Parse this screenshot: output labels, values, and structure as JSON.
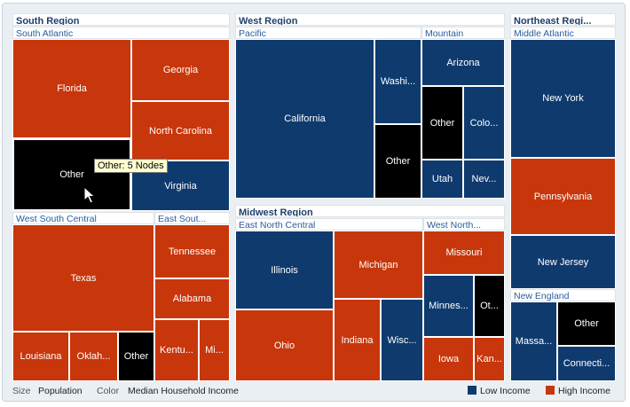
{
  "colors": {
    "low": "#0f3a6e",
    "high": "#c8360b",
    "other": "#000000"
  },
  "chart_data": {
    "type": "treemap",
    "size_measure": "Population",
    "color_measure": "Median Household Income",
    "legend": [
      {
        "key": "low",
        "label": "Low Income"
      },
      {
        "key": "high",
        "label": "High Income"
      }
    ],
    "tooltip": "Other: 5 Nodes",
    "regions": [
      {
        "name": "South Region",
        "subregions": [
          {
            "name": "South Atlantic",
            "states": [
              {
                "name": "Florida",
                "income": "high"
              },
              {
                "name": "Georgia",
                "income": "high"
              },
              {
                "name": "North Carolina",
                "income": "high"
              },
              {
                "name": "Other",
                "income": "other",
                "nodes": 5
              },
              {
                "name": "Virginia",
                "income": "low"
              }
            ]
          },
          {
            "name": "West South Central",
            "states": [
              {
                "name": "Texas",
                "income": "high"
              },
              {
                "name": "Louisiana",
                "income": "high"
              },
              {
                "name": "Oklah...",
                "income": "high"
              },
              {
                "name": "Other",
                "income": "other"
              }
            ]
          },
          {
            "name": "East Sout...",
            "states": [
              {
                "name": "Tennessee",
                "income": "high"
              },
              {
                "name": "Alabama",
                "income": "high"
              },
              {
                "name": "Kentu...",
                "income": "high"
              },
              {
                "name": "Mi...",
                "income": "high"
              }
            ]
          }
        ]
      },
      {
        "name": "West Region",
        "subregions": [
          {
            "name": "Pacific",
            "states": [
              {
                "name": "California",
                "income": "low"
              },
              {
                "name": "Washi...",
                "income": "low"
              },
              {
                "name": "Other",
                "income": "other"
              }
            ]
          },
          {
            "name": "Mountain",
            "states": [
              {
                "name": "Arizona",
                "income": "low"
              },
              {
                "name": "Other",
                "income": "other"
              },
              {
                "name": "Colo...",
                "income": "low"
              },
              {
                "name": "Utah",
                "income": "low"
              },
              {
                "name": "Nev...",
                "income": "low"
              }
            ]
          }
        ]
      },
      {
        "name": "Midwest Region",
        "subregions": [
          {
            "name": "East North Central",
            "states": [
              {
                "name": "Illinois",
                "income": "low"
              },
              {
                "name": "Michigan",
                "income": "high"
              },
              {
                "name": "Ohio",
                "income": "high"
              },
              {
                "name": "Indiana",
                "income": "high"
              },
              {
                "name": "Wisc...",
                "income": "low"
              }
            ]
          },
          {
            "name": "West North...",
            "states": [
              {
                "name": "Missouri",
                "income": "high"
              },
              {
                "name": "Minnes...",
                "income": "low"
              },
              {
                "name": "Ot...",
                "income": "other"
              },
              {
                "name": "Iowa",
                "income": "high"
              },
              {
                "name": "Kan...",
                "income": "high"
              }
            ]
          }
        ]
      },
      {
        "name": "Northeast Regi...",
        "subregions": [
          {
            "name": "Middle Atlantic",
            "states": [
              {
                "name": "New York",
                "income": "low"
              },
              {
                "name": "Pennsylvania",
                "income": "high"
              },
              {
                "name": "New Jersey",
                "income": "low"
              }
            ]
          },
          {
            "name": "New England",
            "states": [
              {
                "name": "Other",
                "income": "other"
              },
              {
                "name": "Massa...",
                "income": "low"
              },
              {
                "name": "Connecti...",
                "income": "low"
              }
            ]
          }
        ]
      }
    ]
  }
}
